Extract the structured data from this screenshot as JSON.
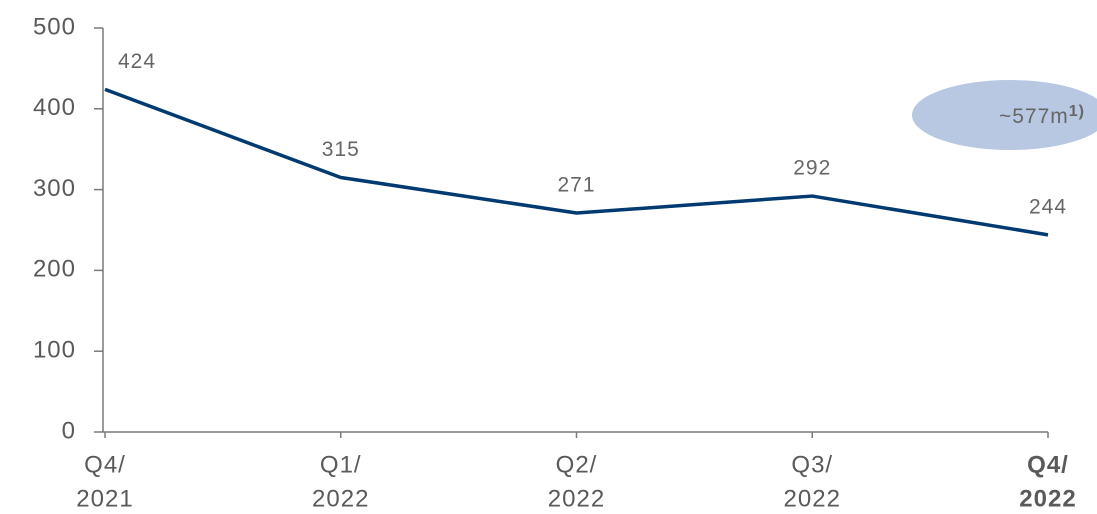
{
  "chart_data": {
    "type": "line",
    "categories": [
      [
        "Q4/",
        "2021"
      ],
      [
        "Q1/",
        "2022"
      ],
      [
        "Q2/",
        "2022"
      ],
      [
        "Q3/",
        "2022"
      ],
      [
        "Q4/",
        "2022"
      ]
    ],
    "series": [
      {
        "name": null,
        "color": "#003a70",
        "values": [
          424,
          315,
          271,
          292,
          244
        ]
      }
    ],
    "ylim": [
      0,
      500
    ],
    "yticks": [
      0,
      100,
      200,
      300,
      400,
      500
    ],
    "grid": false,
    "data_labels": true,
    "highlight_category": 4,
    "annotation": {
      "text": "~577m",
      "note": "1)",
      "color": "#b8c8e2"
    }
  }
}
